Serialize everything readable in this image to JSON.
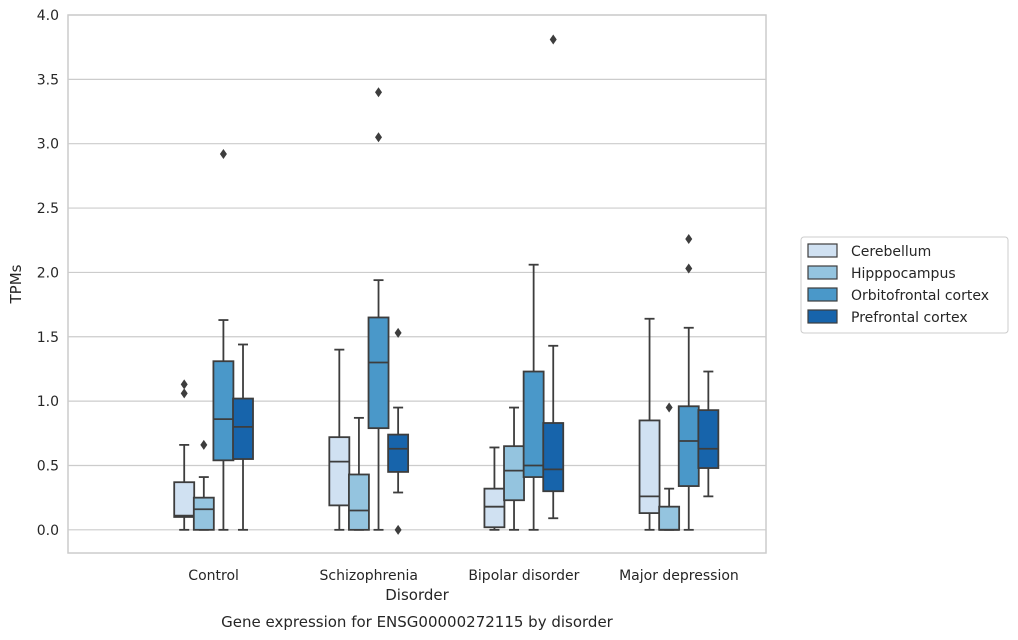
{
  "chart_data": {
    "type": "boxplot",
    "caption": "Gene expression for ENSG00000272115 by disorder",
    "xlabel": "Disorder",
    "ylabel": "TPMs",
    "ylim": [
      -0.18,
      4.0
    ],
    "yticks": [
      0.0,
      0.5,
      1.0,
      1.5,
      2.0,
      2.5,
      3.0,
      3.5,
      4.0
    ],
    "ytick_labels": [
      "0.0",
      "0.5",
      "1.0",
      "1.5",
      "2.0",
      "2.5",
      "3.0",
      "3.5",
      "4.0"
    ],
    "grid": true,
    "legend_position": "right",
    "categories": [
      "Control",
      "Schizophrenia",
      "Bipolar disorder",
      "Major depression"
    ],
    "series": [
      {
        "name": "Cerebellum",
        "color": "#d0e1f2",
        "boxes": [
          {
            "whislo": 0.0,
            "q1": 0.1,
            "med": 0.11,
            "q3": 0.37,
            "whishi": 0.66,
            "fliers": [
              1.06,
              1.13
            ]
          },
          {
            "whislo": 0.0,
            "q1": 0.19,
            "med": 0.53,
            "q3": 0.72,
            "whishi": 1.4,
            "fliers": []
          },
          {
            "whislo": 0.0,
            "q1": 0.02,
            "med": 0.18,
            "q3": 0.32,
            "whishi": 0.64,
            "fliers": []
          },
          {
            "whislo": 0.0,
            "q1": 0.13,
            "med": 0.26,
            "q3": 0.85,
            "whishi": 1.64,
            "fliers": []
          }
        ]
      },
      {
        "name": "Hipppocampus",
        "color": "#94c4df",
        "boxes": [
          {
            "whislo": 0.0,
            "q1": 0.0,
            "med": 0.16,
            "q3": 0.25,
            "whishi": 0.41,
            "fliers": [
              0.66
            ]
          },
          {
            "whislo": 0.0,
            "q1": 0.0,
            "med": 0.15,
            "q3": 0.43,
            "whishi": 0.87,
            "fliers": []
          },
          {
            "whislo": 0.0,
            "q1": 0.23,
            "med": 0.46,
            "q3": 0.65,
            "whishi": 0.95,
            "fliers": []
          },
          {
            "whislo": 0.0,
            "q1": 0.0,
            "med": 0.0,
            "q3": 0.18,
            "whishi": 0.32,
            "fliers": [
              0.95
            ]
          }
        ]
      },
      {
        "name": "Orbitofrontal cortex",
        "color": "#4a98c9",
        "boxes": [
          {
            "whislo": 0.0,
            "q1": 0.54,
            "med": 0.86,
            "q3": 1.31,
            "whishi": 1.63,
            "fliers": [
              2.92
            ]
          },
          {
            "whislo": 0.0,
            "q1": 0.79,
            "med": 1.3,
            "q3": 1.65,
            "whishi": 1.94,
            "fliers": [
              3.05,
              3.4
            ]
          },
          {
            "whislo": 0.0,
            "q1": 0.41,
            "med": 0.5,
            "q3": 1.23,
            "whishi": 2.06,
            "fliers": []
          },
          {
            "whislo": 0.0,
            "q1": 0.34,
            "med": 0.69,
            "q3": 0.96,
            "whishi": 1.57,
            "fliers": [
              2.03,
              2.26
            ]
          }
        ]
      },
      {
        "name": "Prefrontal cortex",
        "color": "#1764ab",
        "boxes": [
          {
            "whislo": 0.0,
            "q1": 0.55,
            "med": 0.8,
            "q3": 1.02,
            "whishi": 1.44,
            "fliers": []
          },
          {
            "whislo": 0.29,
            "q1": 0.45,
            "med": 0.63,
            "q3": 0.74,
            "whishi": 0.95,
            "fliers": [
              0.0,
              1.53
            ]
          },
          {
            "whislo": 0.09,
            "q1": 0.3,
            "med": 0.47,
            "q3": 0.83,
            "whishi": 1.43,
            "fliers": [
              3.81
            ]
          },
          {
            "whislo": 0.26,
            "q1": 0.48,
            "med": 0.63,
            "q3": 0.93,
            "whishi": 1.23,
            "fliers": []
          }
        ]
      }
    ]
  }
}
